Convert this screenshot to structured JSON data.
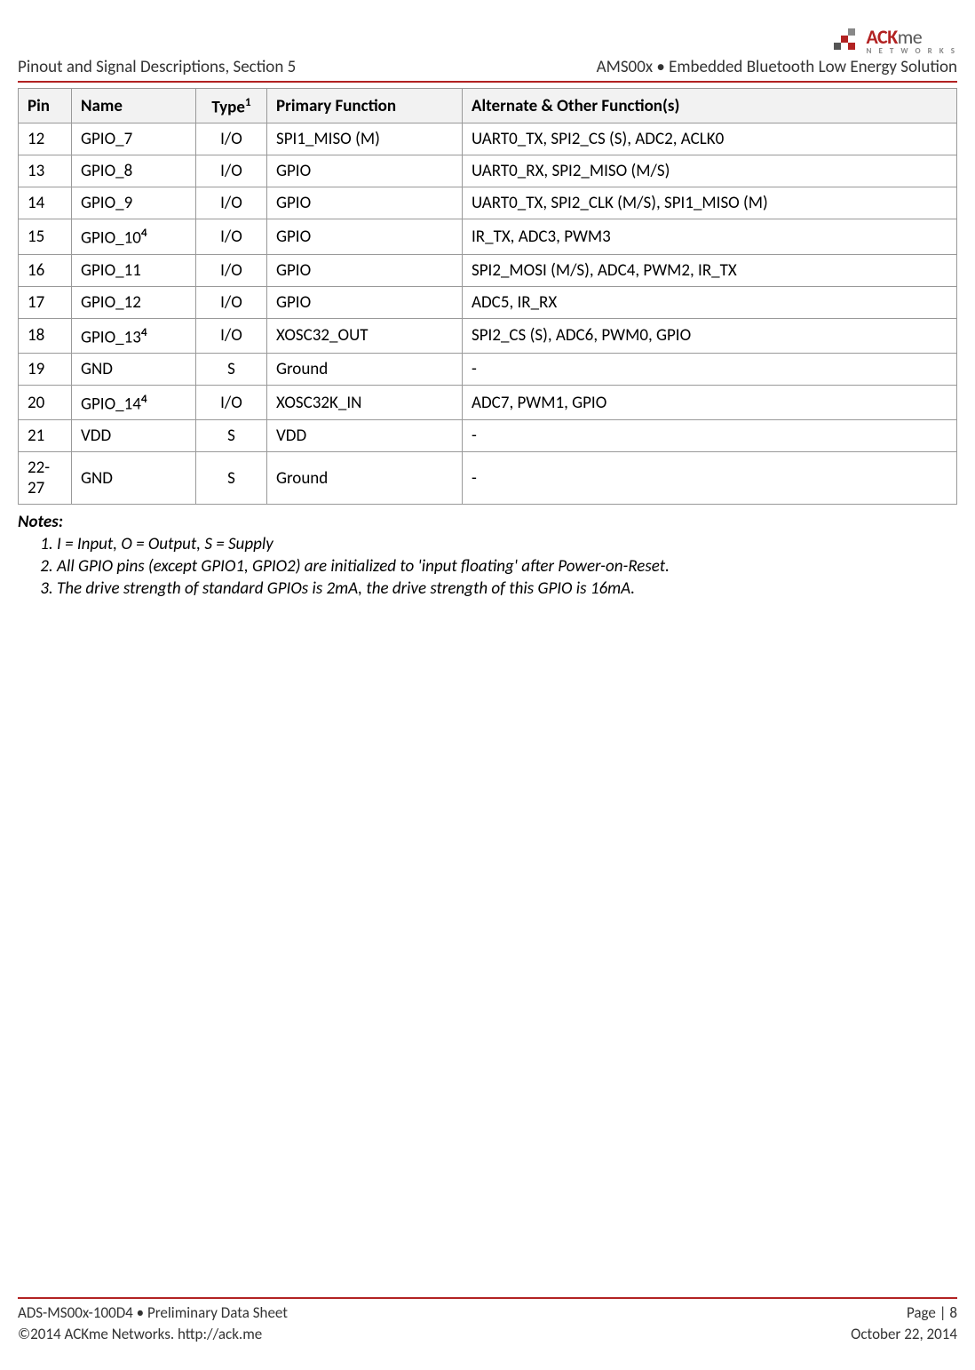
{
  "header": {
    "left": "Pinout and Signal Descriptions, Section 5",
    "right": "AMS00x • Embedded Bluetooth Low Energy Solution",
    "logo_ack": "ACK",
    "logo_me": "me",
    "logo_net": "N E T W O R K S",
    "logo_colors": {
      "red": "#b22222",
      "grey": "#555555",
      "light": "#888888"
    }
  },
  "table": {
    "headers": {
      "pin": "Pin",
      "name": "Name",
      "type": "Type",
      "type_sup": "1",
      "primary": "Primary Function",
      "alternate": "Alternate & Other Function(s)"
    },
    "rows": [
      {
        "pin": "12",
        "name": "GPIO_7",
        "sup": "",
        "type": "I/O",
        "primary": "SPI1_MISO (M)",
        "alt": "UART0_TX, SPI2_CS (S), ADC2, ACLK0"
      },
      {
        "pin": "13",
        "name": "GPIO_8",
        "sup": "",
        "type": "I/O",
        "primary": "GPIO",
        "alt": "UART0_RX, SPI2_MISO (M/S)"
      },
      {
        "pin": "14",
        "name": "GPIO_9",
        "sup": "",
        "type": "I/O",
        "primary": "GPIO",
        "alt": "UART0_TX, SPI2_CLK (M/S), SPI1_MISO (M)"
      },
      {
        "pin": "15",
        "name": "GPIO_10",
        "sup": "4",
        "type": "I/O",
        "primary": "GPIO",
        "alt": "IR_TX, ADC3, PWM3"
      },
      {
        "pin": "16",
        "name": "GPIO_11",
        "sup": "",
        "type": "I/O",
        "primary": "GPIO",
        "alt": "SPI2_MOSI (M/S), ADC4, PWM2, IR_TX"
      },
      {
        "pin": "17",
        "name": "GPIO_12",
        "sup": "",
        "type": "I/O",
        "primary": "GPIO",
        "alt": "ADC5, IR_RX"
      },
      {
        "pin": "18",
        "name": "GPIO_13",
        "sup": "4",
        "type": "I/O",
        "primary": "XOSC32_OUT",
        "alt": "SPI2_CS (S), ADC6, PWM0, GPIO"
      },
      {
        "pin": "19",
        "name": "GND",
        "sup": "",
        "type": "S",
        "primary": "Ground",
        "alt": "-"
      },
      {
        "pin": "20",
        "name": "GPIO_14",
        "sup": "4",
        "type": "I/O",
        "primary": "XOSC32K_IN",
        "alt": "ADC7, PWM1, GPIO"
      },
      {
        "pin": "21",
        "name": "VDD",
        "sup": "",
        "type": "S",
        "primary": "VDD",
        "alt": "-"
      },
      {
        "pin": "22-27",
        "name": "GND",
        "sup": "",
        "type": "S",
        "primary": "Ground",
        "alt": "-"
      }
    ],
    "colors": {
      "header_bg": "#f2f2f2",
      "border": "#999999"
    }
  },
  "notes": {
    "title": "Notes:",
    "items": [
      "I = Input, O = Output, S = Supply",
      "All GPIO pins (except GPIO1, GPIO2) are initialized to 'input floating' after Power-on-Reset.",
      "The drive strength of standard GPIOs is 2mA, the drive strength of this GPIO is 16mA."
    ]
  },
  "footer": {
    "left1": "ADS-MS00x-100D4 • Preliminary Data Sheet",
    "left2": "©2014 ACKme Networks. http://ack.me",
    "right1": "Page | 8",
    "right2": "October 22, 2014",
    "line_color": "#b22222"
  }
}
